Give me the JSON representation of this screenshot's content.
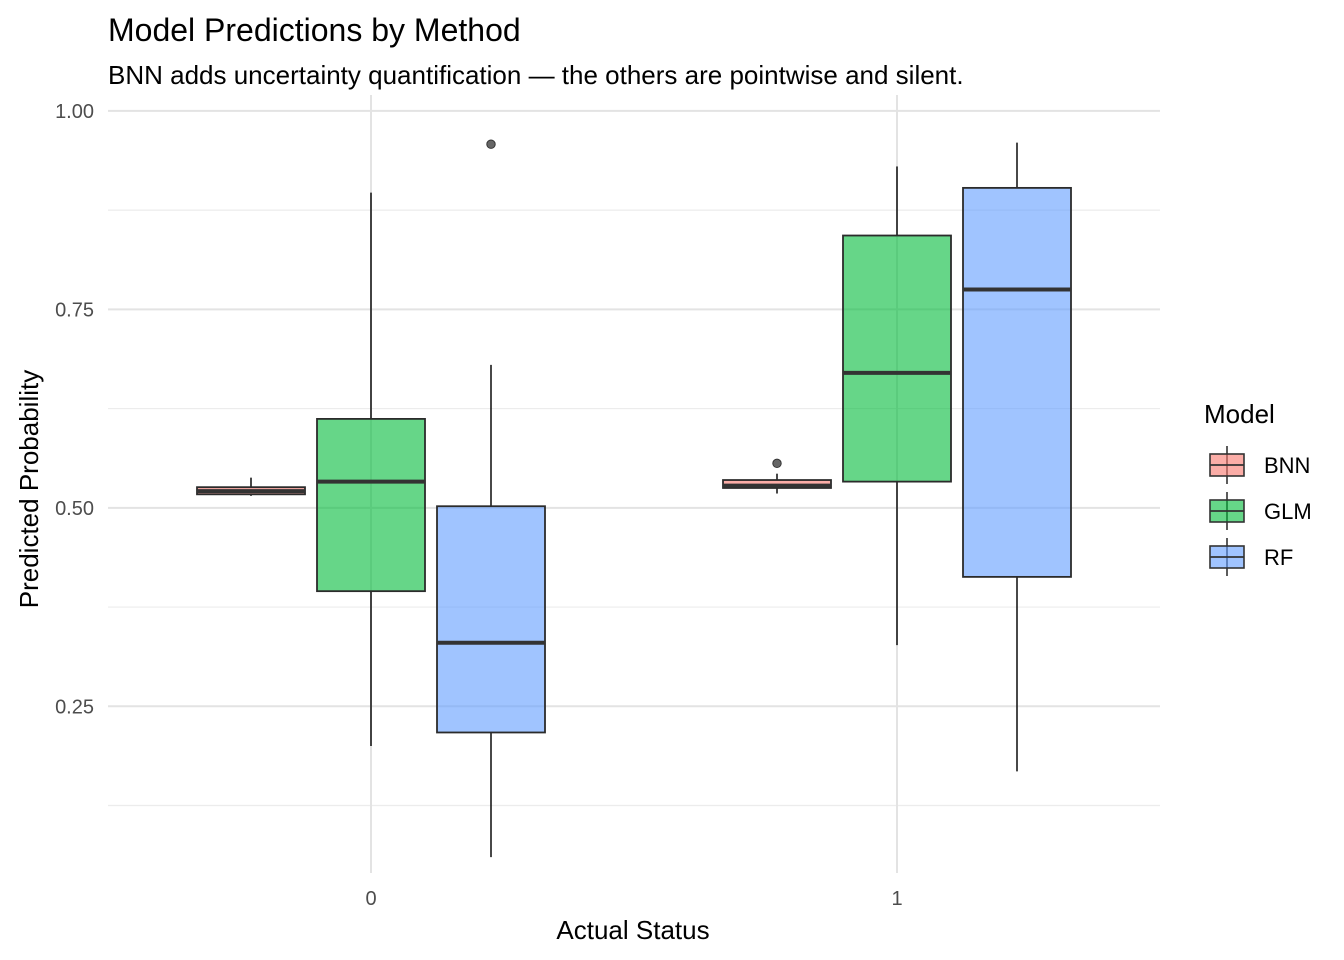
{
  "chart_data": {
    "type": "boxplot",
    "title": "Model Predictions by Method",
    "subtitle": "BNN adds uncertainty quantification — the others are pointwise and silent.",
    "xlabel": "Actual Status",
    "ylabel": "Predicted Probability",
    "categories": [
      "0",
      "1"
    ],
    "ylim": [
      0.04,
      1.02
    ],
    "yticks": [
      0.25,
      0.5,
      0.75,
      1.0
    ],
    "ytick_labels": [
      "0.25",
      "0.50",
      "0.75",
      "1.00"
    ],
    "grid": true,
    "legend": {
      "title": "Model",
      "position": "right"
    },
    "series": [
      {
        "name": "BNN",
        "color": "#F8766D",
        "boxes": [
          {
            "category": "0",
            "min": 0.515,
            "q1": 0.517,
            "median": 0.521,
            "q3": 0.526,
            "max": 0.538,
            "outliers": []
          },
          {
            "category": "1",
            "min": 0.518,
            "q1": 0.525,
            "median": 0.528,
            "q3": 0.535,
            "max": 0.543,
            "outliers": [
              0.556
            ]
          }
        ]
      },
      {
        "name": "GLM",
        "color": "#00BA38",
        "boxes": [
          {
            "category": "0",
            "min": 0.2,
            "q1": 0.395,
            "median": 0.533,
            "q3": 0.612,
            "max": 0.897,
            "outliers": []
          },
          {
            "category": "1",
            "min": 0.327,
            "q1": 0.533,
            "median": 0.67,
            "q3": 0.843,
            "max": 0.93,
            "outliers": []
          }
        ]
      },
      {
        "name": "RF",
        "color": "#619CFF",
        "boxes": [
          {
            "category": "0",
            "min": 0.06,
            "q1": 0.217,
            "median": 0.33,
            "q3": 0.502,
            "max": 0.68,
            "outliers": [
              0.958
            ]
          },
          {
            "category": "1",
            "min": 0.168,
            "q1": 0.413,
            "median": 0.775,
            "q3": 0.903,
            "max": 0.96,
            "outliers": []
          }
        ]
      }
    ]
  }
}
